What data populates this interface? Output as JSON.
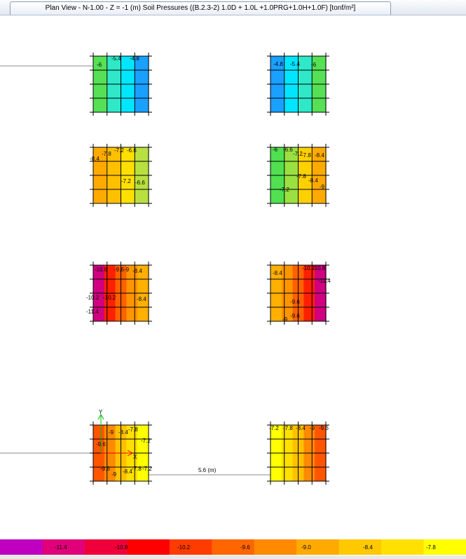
{
  "window": {
    "tab_title": "Plan View - N-1.00 - Z = -1 (m)   Soil Pressures    ((B.2.3-2) 1.0D + 1.0L +1.0PRG+1.0H+1.0F)  [tonf/m²]"
  },
  "dimension_label": "5.6 (m)",
  "axes": {
    "x_label": "X",
    "y_label": "Y"
  },
  "legend": {
    "colors": [
      "#c000c0",
      "#e0007a",
      "#f0003a",
      "#ff0000",
      "#ff3c00",
      "#ff6600",
      "#ff8a00",
      "#ffaa00",
      "#ffc800",
      "#ffe000",
      "#ffff00"
    ],
    "ticks": [
      "-11.4",
      "-10.8",
      "-10.2",
      "-9.6",
      "-9.0",
      "-8.4",
      "-7.8"
    ]
  },
  "footings": [
    {
      "colors": [
        "#55e055",
        "#2ee8c8",
        "#00e6ff",
        "#1aa0ff"
      ],
      "labels": [
        "-6",
        "-5.4",
        "-4.8"
      ]
    },
    {
      "colors": [
        "#1aa0ff",
        "#00e6ff",
        "#2ee8c8",
        "#55e055"
      ],
      "labels": [
        "-4.8",
        "-5.4",
        "-6"
      ]
    },
    {
      "colors": [
        "#ffaa00",
        "#ffc000",
        "#ffe000",
        "#b8e040"
      ],
      "labels": [
        "-8.4",
        "-7.8",
        "-7.2",
        "-6.6",
        "-7.2",
        "-6.6"
      ]
    },
    {
      "colors": [
        "#50e050",
        "#9ae040",
        "#ffd000",
        "#ffaa00"
      ],
      "labels": [
        "-6",
        "-6.6",
        "-7.2",
        "-7.8",
        "-8.4",
        "-7.8",
        "-8.4",
        "-7.2",
        "-9"
      ]
    },
    {
      "colors": [
        "#d00080",
        "#ff2000",
        "#ff6000",
        "#ff9500",
        "#ffb000"
      ],
      "labels": [
        "-10.8",
        "-9.6",
        "-9",
        "-8.4",
        "-10.2",
        "-10.2",
        "-8.4",
        "-11.4"
      ]
    },
    {
      "colors": [
        "#ffb000",
        "#ff9500",
        "#ff6000",
        "#ff2000",
        "#d00080"
      ],
      "labels": [
        "-8.4",
        "-10.2",
        "-10.8",
        "-11.4",
        "-9.6",
        "-9.6",
        "-9"
      ]
    },
    {
      "colors": [
        "#ff5500",
        "#ff8a00",
        "#ffc000",
        "#ffe000",
        "#ffff00"
      ],
      "labels": [
        "-9",
        "-8.4",
        "-7.8",
        "-9.6",
        "-7.2",
        "-9.6",
        "-9",
        "-8.4",
        "-7.8",
        "-7.2"
      ]
    },
    {
      "colors": [
        "#ffff00",
        "#ffe000",
        "#ffc000",
        "#ff8a00",
        "#ff5500"
      ],
      "labels": [
        "-7.2",
        "-7.8",
        "-8.4",
        "-9",
        "-9.6"
      ]
    }
  ]
}
